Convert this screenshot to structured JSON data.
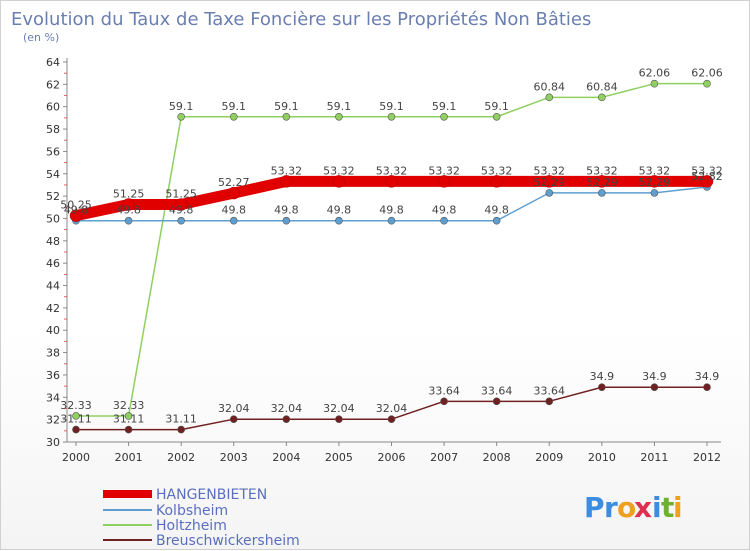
{
  "title": "Evolution du Taux de Taxe Foncière sur les Propriétés Non Bâties",
  "unit_label": "(en %)",
  "logo": {
    "text": "Proxiti",
    "letters": [
      "P",
      "r",
      "o",
      "x",
      "i",
      "t",
      "i"
    ],
    "colors": [
      "#3a8de0",
      "#3a8de0",
      "#f0a020",
      "#e03050",
      "#3a8de0",
      "#70b030",
      "#f0a020"
    ]
  },
  "chart_data": {
    "type": "line",
    "title": "Evolution du Taux de Taxe Foncière sur les Propriétés Non Bâties",
    "ylabel": "(en %)",
    "xlabel": "",
    "x": [
      "2000",
      "2001",
      "2002",
      "2003",
      "2004",
      "2005",
      "2006",
      "2007",
      "2008",
      "2009",
      "2010",
      "2011",
      "2012"
    ],
    "ylim": [
      30,
      64
    ],
    "yticks": [
      30,
      32,
      34,
      36,
      38,
      40,
      42,
      44,
      46,
      48,
      50,
      52,
      54,
      56,
      58,
      60,
      62,
      64
    ],
    "grid": false,
    "legend": "bottom-left",
    "series": [
      {
        "name": "HANGENBIETEN",
        "color": "#e00000",
        "values": [
          50.25,
          51.25,
          51.25,
          52.27,
          53.32,
          53.32,
          53.32,
          53.32,
          53.32,
          53.32,
          53.32,
          53.32,
          53.32
        ],
        "labels": [
          "50.25",
          "51.25",
          "51.25",
          "52.27",
          "53.32",
          "53.32",
          "53.32",
          "53.32",
          "53.32",
          "53.32",
          "53.32",
          "53.32",
          "53.32"
        ]
      },
      {
        "name": "Kolbsheim",
        "color": "#5f9fd0",
        "values": [
          49.8,
          49.8,
          49.8,
          49.8,
          49.8,
          49.8,
          49.8,
          49.8,
          49.8,
          52.29,
          52.29,
          52.29,
          52.82
        ],
        "labels": [
          "49.8",
          "49.8",
          "49.8",
          "49.8",
          "49.8",
          "49.8",
          "49.8",
          "49.8",
          "49.8",
          "52.29",
          "52.29",
          "52.29",
          "52.82"
        ]
      },
      {
        "name": "Holtzheim",
        "color": "#90d060",
        "values": [
          32.33,
          32.33,
          59.1,
          59.1,
          59.1,
          59.1,
          59.1,
          59.1,
          59.1,
          60.84,
          60.84,
          62.06,
          62.06
        ],
        "labels": [
          "32.33",
          "32.33",
          "59.1",
          "59.1",
          "59.1",
          "59.1",
          "59.1",
          "59.1",
          "59.1",
          "60.84",
          "60.84",
          "62.06",
          "62.06"
        ]
      },
      {
        "name": "Breuschwickersheim",
        "color": "#702020",
        "values": [
          31.11,
          31.11,
          31.11,
          32.04,
          32.04,
          32.04,
          32.04,
          33.64,
          33.64,
          33.64,
          34.9,
          34.9,
          34.9
        ],
        "labels": [
          "31.11",
          "31.11",
          "31.11",
          "32.04",
          "32.04",
          "32.04",
          "32.04",
          "33.64",
          "33.64",
          "33.64",
          "34.9",
          "34.9",
          "34.9"
        ]
      }
    ]
  }
}
